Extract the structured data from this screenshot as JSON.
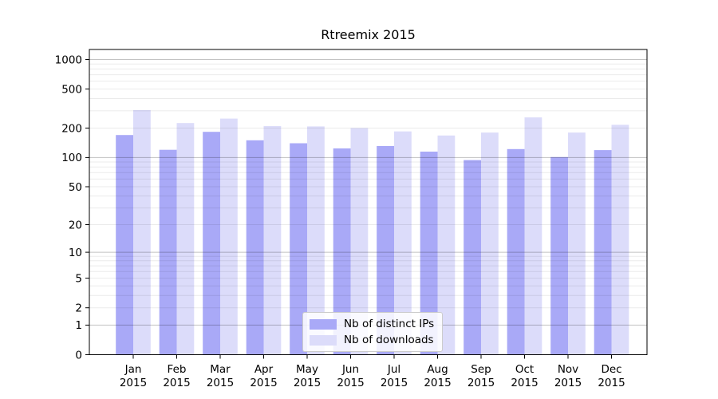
{
  "chart_data": {
    "type": "bar",
    "title": "Rtreemix 2015",
    "xlabel": "",
    "ylabel": "",
    "yscale": "log1p",
    "ylim": [
      0,
      1255
    ],
    "grid": true,
    "legend_position": "lower-center-inside",
    "yticks": [
      0,
      1,
      2,
      5,
      10,
      20,
      50,
      100,
      200,
      500,
      1000
    ],
    "categories": [
      {
        "month": "Jan",
        "year": "2015"
      },
      {
        "month": "Feb",
        "year": "2015"
      },
      {
        "month": "Mar",
        "year": "2015"
      },
      {
        "month": "Apr",
        "year": "2015"
      },
      {
        "month": "May",
        "year": "2015"
      },
      {
        "month": "Jun",
        "year": "2015"
      },
      {
        "month": "Jul",
        "year": "2015"
      },
      {
        "month": "Aug",
        "year": "2015"
      },
      {
        "month": "Sep",
        "year": "2015"
      },
      {
        "month": "Oct",
        "year": "2015"
      },
      {
        "month": "Nov",
        "year": "2015"
      },
      {
        "month": "Dec",
        "year": "2015"
      }
    ],
    "series": [
      {
        "name": "Nb of distinct IPs",
        "color": "#a9a9f7",
        "values": [
          170,
          120,
          183,
          150,
          140,
          124,
          131,
          115,
          94,
          122,
          101,
          119
        ]
      },
      {
        "name": "Nb of downloads",
        "color": "#dcdcfa",
        "values": [
          305,
          225,
          250,
          210,
          208,
          200,
          185,
          168,
          180,
          257,
          180,
          216
        ]
      }
    ]
  },
  "colors": {
    "grid_major": "rgba(0,0,0,0.24)",
    "grid_minor": "rgba(0,0,0,0.08)",
    "axis": "#000000",
    "background": "#ffffff"
  }
}
